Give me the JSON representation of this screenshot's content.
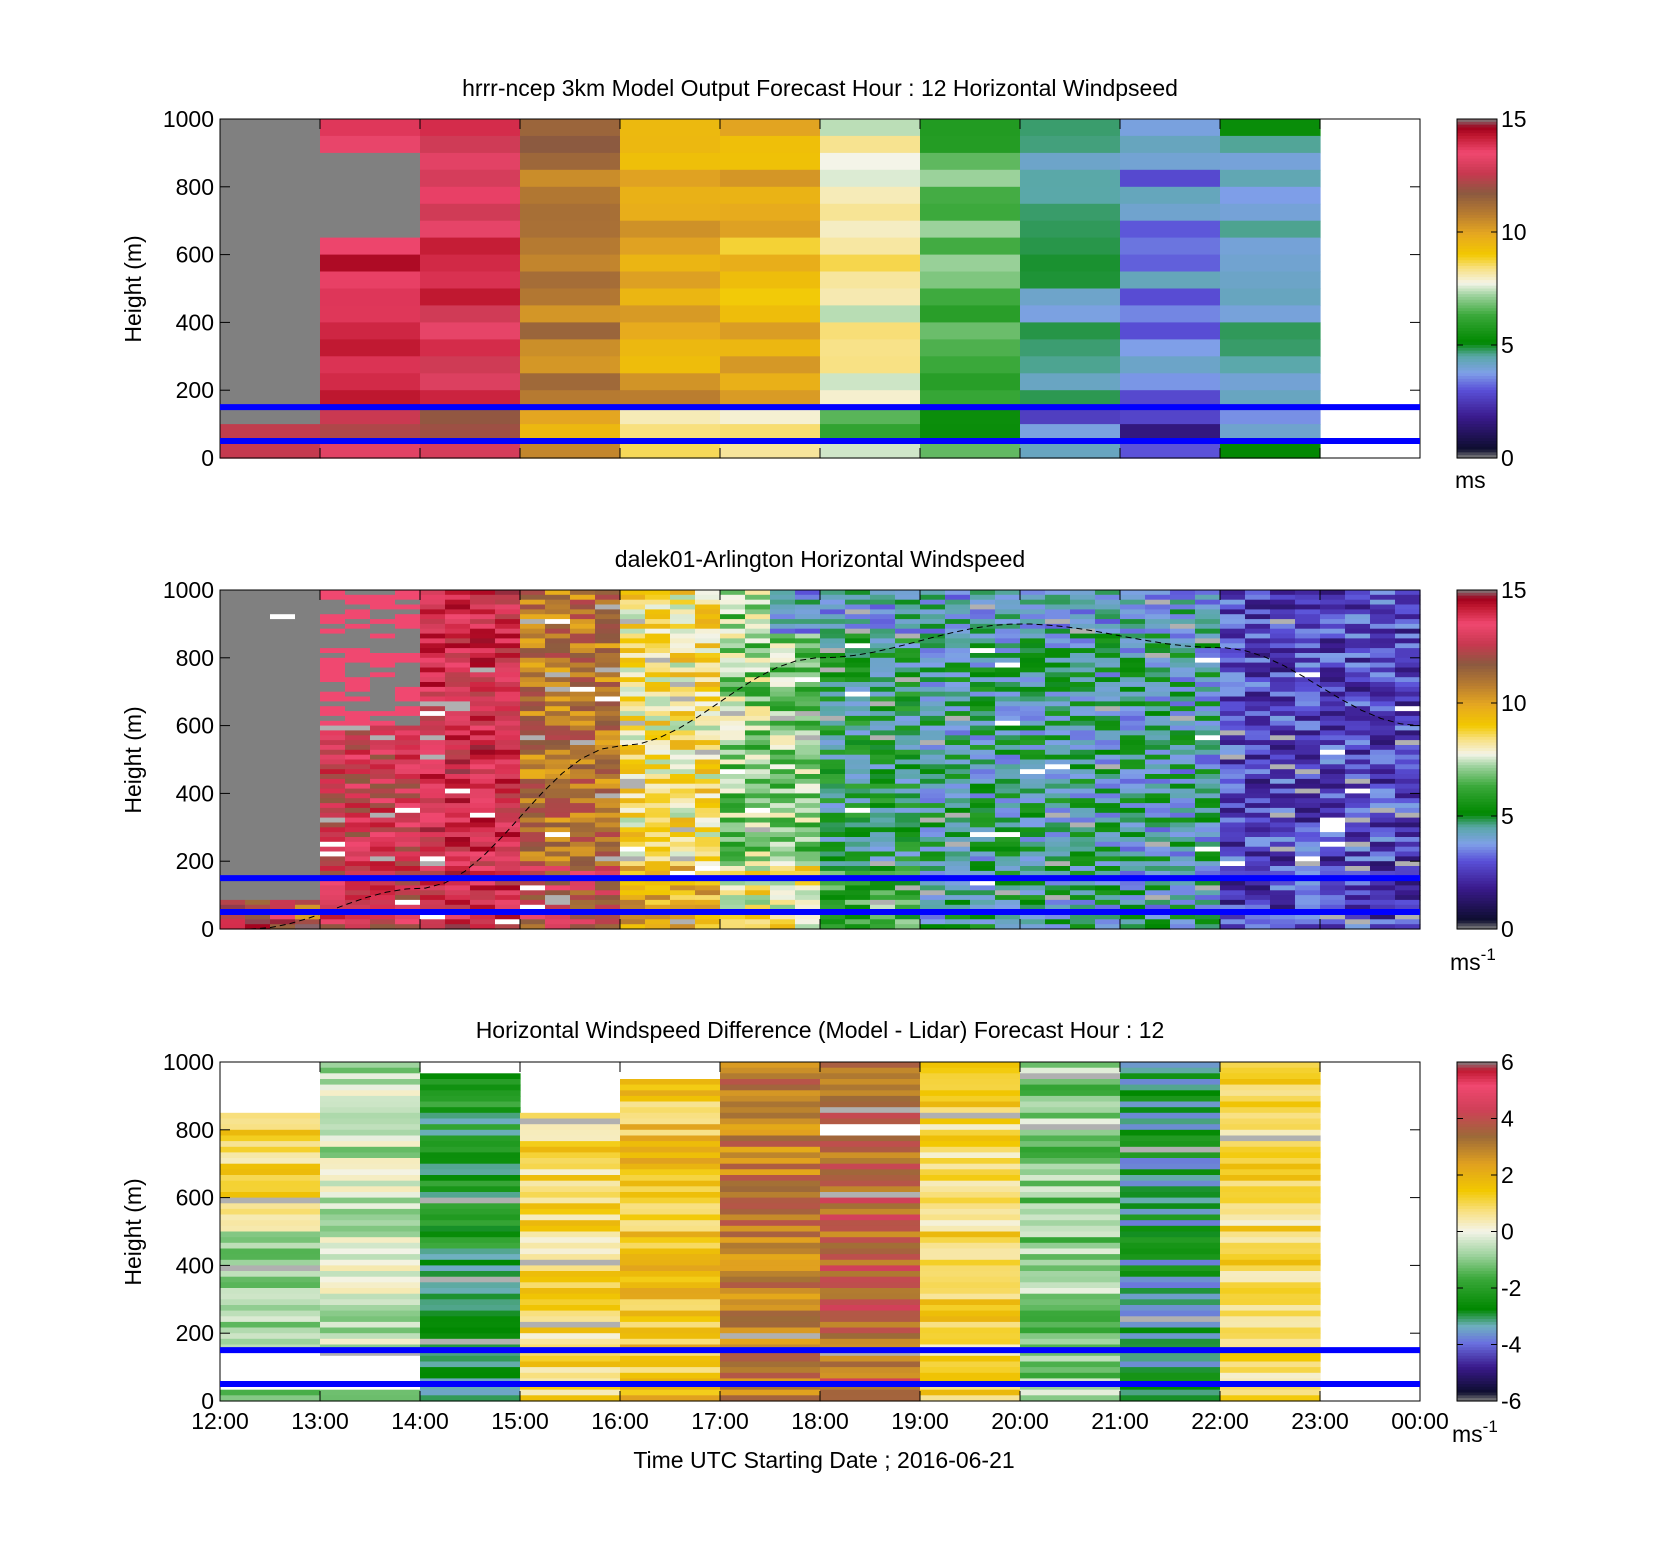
{
  "figure": {
    "xlabel": "Time UTC  Starting Date ; 2016-06-21",
    "xticks": [
      "12:00",
      "13:00",
      "14:00",
      "15:00",
      "16:00",
      "17:00",
      "18:00",
      "19:00",
      "20:00",
      "21:00",
      "22:00",
      "23:00",
      "00:00"
    ]
  },
  "colors": {
    "reference_lines": "#0000ff",
    "missing": "#808080"
  },
  "chart_data": [
    {
      "type": "heatmap",
      "title": "hrrr-ncep 3km Model Output   Forecast Hour : 12 Horizontal Windpseed",
      "ylabel": "Height (m)",
      "ylim": [
        0,
        1000
      ],
      "yticks": [
        "0",
        "200",
        "400",
        "600",
        "800",
        "1000"
      ],
      "colorbar": {
        "range": [
          0,
          15
        ],
        "ticks": [
          "0",
          "5",
          "10",
          "15"
        ],
        "unit": "ms",
        "unit_sup": ""
      },
      "reference_lines_m": [
        50,
        150
      ],
      "approx_column_values_ms": [
        null,
        14,
        13.5,
        11,
        10,
        9.5,
        8,
        6.5,
        4.5,
        3.5,
        4.5,
        null
      ]
    },
    {
      "type": "heatmap",
      "title": "dalek01-Arlington  Horizontal Windspeed",
      "ylabel": "Height (m)",
      "ylim": [
        0,
        1000
      ],
      "yticks": [
        "0",
        "200",
        "400",
        "600",
        "800",
        "1000"
      ],
      "colorbar": {
        "range": [
          0,
          15
        ],
        "ticks": [
          "0",
          "5",
          "10",
          "15"
        ],
        "unit": "ms",
        "unit_sup": "-1"
      },
      "reference_lines_m": [
        50,
        150
      ],
      "boundary_layer_curve_m": [
        [
          12.3,
          0
        ],
        [
          14,
          120
        ],
        [
          16,
          540
        ],
        [
          18,
          800
        ],
        [
          20,
          900
        ],
        [
          22,
          830
        ],
        [
          24,
          600
        ]
      ]
    },
    {
      "type": "heatmap",
      "title": "Horizontal Windspeed Difference (Model - Lidar) Forecast Hour : 12",
      "ylabel": "Height (m)",
      "ylim": [
        0,
        1000
      ],
      "yticks": [
        "0",
        "200",
        "400",
        "600",
        "800",
        "1000"
      ],
      "colorbar": {
        "range": [
          -6,
          6
        ],
        "ticks": [
          "-6",
          "-4",
          "-2",
          "0",
          "2",
          "4",
          "6"
        ],
        "unit": "ms",
        "unit_sup": "-1"
      },
      "reference_lines_m": [
        50,
        150
      ],
      "approx_column_values_ms": [
        1,
        -0.5,
        -2.5,
        1,
        1.5,
        3,
        3.5,
        1,
        -1,
        -3,
        1,
        null
      ]
    }
  ]
}
